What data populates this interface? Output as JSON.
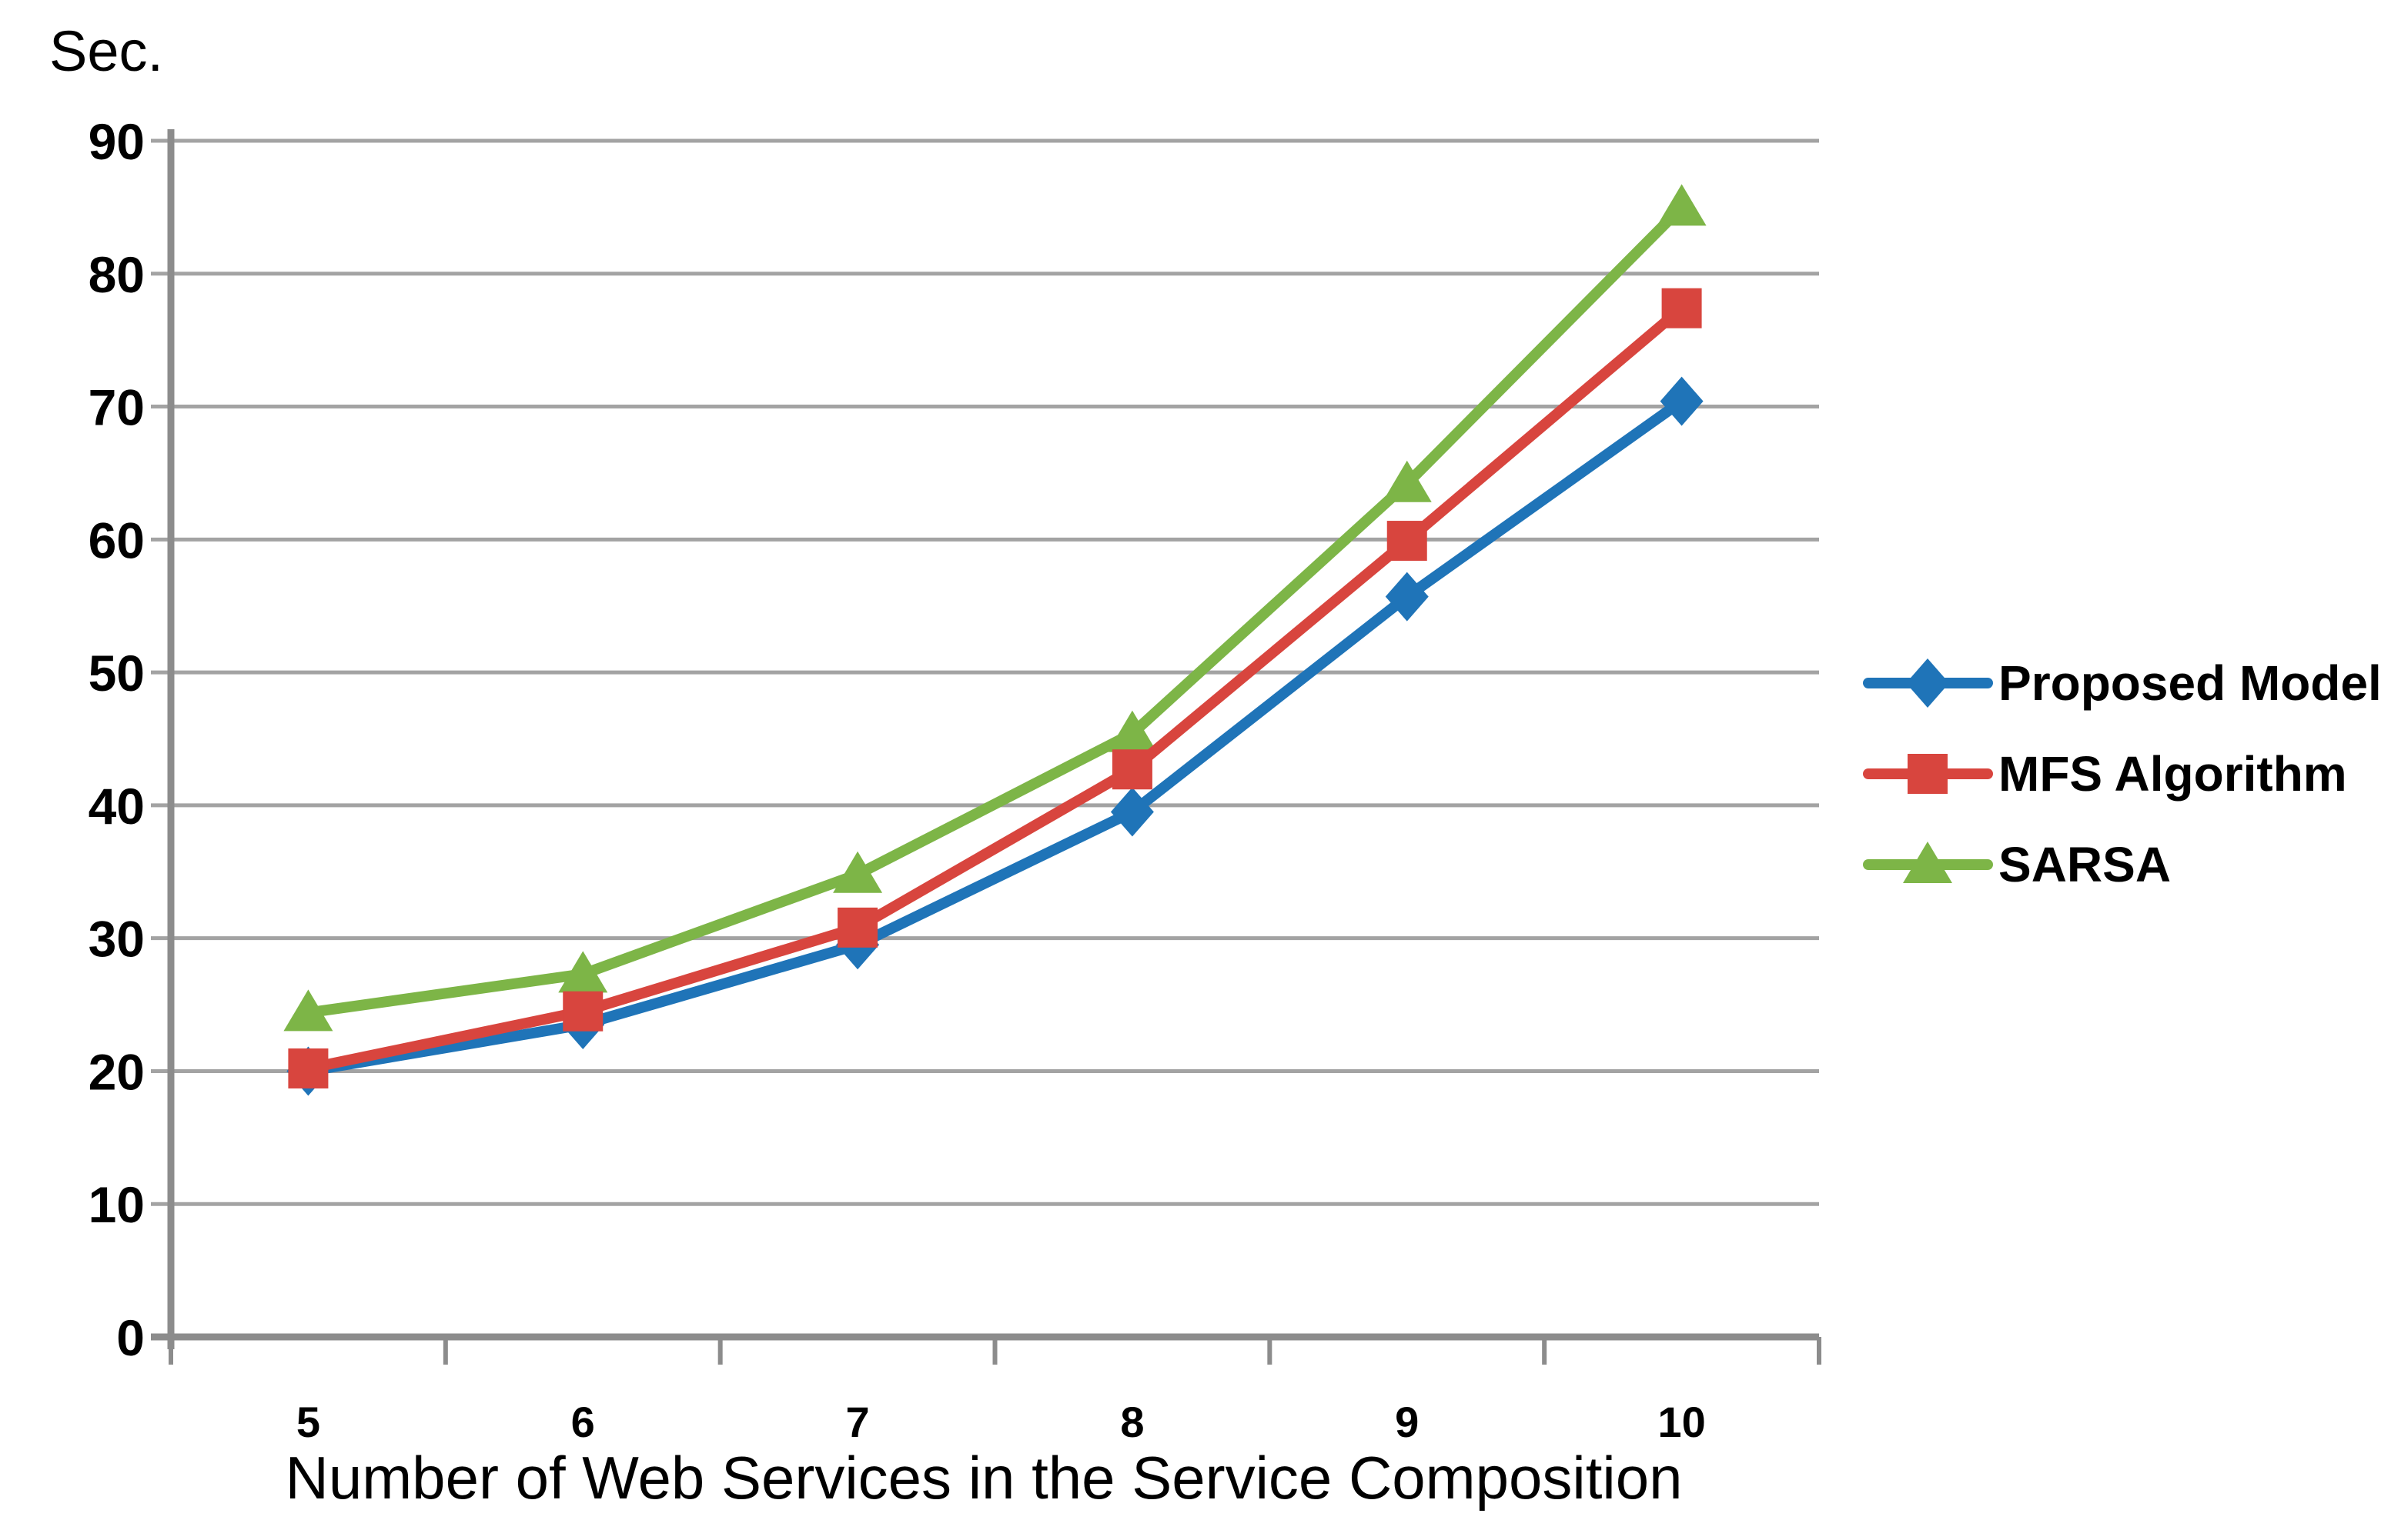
{
  "chart_data": {
    "type": "line",
    "y_unit_label": "Sec.",
    "xlabel": "Number of Web Services in the Service Composition",
    "ylabel": "Sec.",
    "categories": [
      "5",
      "6",
      "7",
      "8",
      "9",
      "10"
    ],
    "ylim": [
      0,
      90
    ],
    "yticks": [
      0,
      10,
      20,
      30,
      40,
      50,
      60,
      70,
      80,
      90
    ],
    "grid": "horizontal",
    "legend_position": "right",
    "series": [
      {
        "name": "Proposed Model",
        "marker": "diamond",
        "color": "#1F74B8",
        "values": [
          20.0,
          23.5,
          29.5,
          39.5,
          55.7,
          70.4
        ]
      },
      {
        "name": "MFS Algorithm",
        "marker": "square",
        "color": "#D8453E",
        "values": [
          20.2,
          24.5,
          30.8,
          42.7,
          59.9,
          77.4
        ]
      },
      {
        "name": "SARSA",
        "marker": "triangle",
        "color": "#7DB547",
        "values": [
          24.4,
          27.3,
          34.8,
          45.4,
          64.2,
          85.0
        ]
      }
    ],
    "draw_order": [
      "SARSA",
      "Proposed Model",
      "MFS Algorithm"
    ]
  },
  "colors": {
    "gridline": "#A3A3A3",
    "axis": "#8C8C8C",
    "text": "#000000"
  }
}
